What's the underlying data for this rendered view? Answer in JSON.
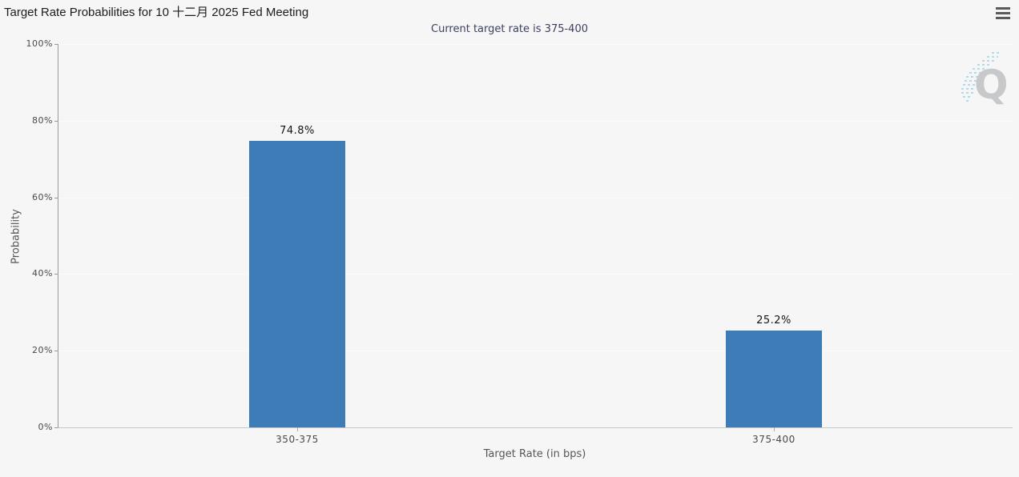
{
  "header": {
    "menu_icon": "hamburger-menu"
  },
  "watermark": {
    "letter": "Q"
  },
  "chart_data": {
    "type": "bar",
    "title": "Target Rate Probabilities for 10 十二月 2025 Fed Meeting",
    "subtitle": "Current target rate is 375-400",
    "categories": [
      "350-375",
      "375-400"
    ],
    "values": [
      74.8,
      25.2
    ],
    "value_labels": [
      "74.8%",
      "25.2%"
    ],
    "xlabel": "Target Rate (in bps)",
    "ylabel": "Probability",
    "ylim": [
      0,
      100
    ],
    "ytick_labels": [
      "100%",
      "80%",
      "60%",
      "40%",
      "20%",
      "0%"
    ],
    "grid": "horizontal dotted lines, legend none",
    "colors": {
      "bar": "#3e7cb8",
      "background": "#f6f6f6",
      "title": "#1c1c1c",
      "subtitle": "#3d4161",
      "axis_text": "#4a4a4a",
      "axis_title": "#565656",
      "value_label": "#141414",
      "axis_line": "#9a9a9a",
      "grid_dots": "#ffffff",
      "menu_icon": "#595a5c",
      "watermark_q": "#c6c8ca",
      "watermark_streaks": "#a9d6e8"
    }
  }
}
